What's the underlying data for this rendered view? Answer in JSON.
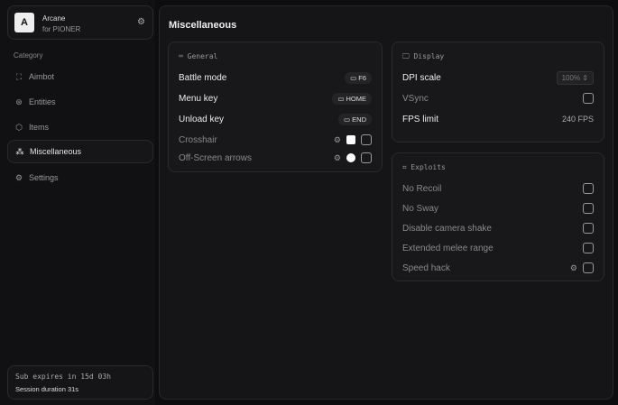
{
  "brand": {
    "logo": "A",
    "name": "Arcane",
    "sub": "for PIONER"
  },
  "sidebar": {
    "category": "Category",
    "items": [
      {
        "label": "Aimbot",
        "icon": "crosshair-icon"
      },
      {
        "label": "Entities",
        "icon": "entities-icon"
      },
      {
        "label": "Items",
        "icon": "box-icon"
      },
      {
        "label": "Miscellaneous",
        "icon": "misc-icon",
        "active": true
      },
      {
        "label": "Settings",
        "icon": "gear-icon"
      }
    ]
  },
  "footer": {
    "sub": "Sub expires in 15d 03h",
    "session": "Session duration 31s"
  },
  "main": {
    "title": "Miscellaneous",
    "general": {
      "header": "General",
      "battle": "Battle mode",
      "battle_key": "F6",
      "menu": "Menu key",
      "menu_key": "HOME",
      "unload": "Unload key",
      "unload_key": "END",
      "crosshair": "Crosshair",
      "offscreen": "Off-Screen arrows"
    },
    "display": {
      "header": "Display",
      "dpi": "DPI scale",
      "dpi_value": "100%",
      "vsync": "VSync",
      "fps": "FPS limit",
      "fps_value": "240 FPS",
      "fps_fill": 1.0
    },
    "exploits": {
      "header": "Exploits",
      "items": [
        "No Recoil",
        "No Sway",
        "Disable camera shake",
        "Extended melee range",
        "Speed hack"
      ]
    }
  }
}
